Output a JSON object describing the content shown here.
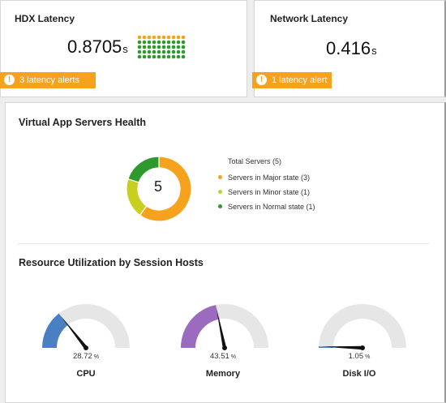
{
  "hdx": {
    "title": "HDX Latency",
    "value": "0.8705",
    "unit": "s",
    "alert_text": "3 latency alerts",
    "dot_colors": {
      "orange": "#f6a21d",
      "green": "#2e9a2e"
    },
    "dot_grid": {
      "rows": 5,
      "cols": 10,
      "orange_count": 10
    }
  },
  "network": {
    "title": "Network Latency",
    "value": "0.416",
    "unit": "s",
    "alert_text": "1 latency alert"
  },
  "alert_icon": "exclamation-icon",
  "health": {
    "title": "Virtual App Servers Health",
    "total_label": "Total Servers (5)",
    "center_value": "5",
    "segments": [
      {
        "name": "Servers in Major state (3)",
        "count": 3,
        "color": "#f6a21d"
      },
      {
        "name": "Servers in Minor state (1)",
        "count": 1,
        "color": "#c9cf1e"
      },
      {
        "name": "Servers in Normal state (1)",
        "count": 1,
        "color": "#2e9a2e"
      }
    ]
  },
  "utilization": {
    "title": "Resource Utilization by Session Hosts",
    "gauges": [
      {
        "label": "CPU",
        "value_text": "28.72",
        "pct_symbol": "%",
        "value": 28.72,
        "color": "#4a7fc1"
      },
      {
        "label": "Memory",
        "value_text": "43.51",
        "pct_symbol": "%",
        "value": 43.51,
        "color": "#9b6bbf"
      },
      {
        "label": "Disk I/O",
        "value_text": "1.05",
        "pct_symbol": "%",
        "value": 1.05,
        "color": "#4a7fc1"
      }
    ]
  }
}
